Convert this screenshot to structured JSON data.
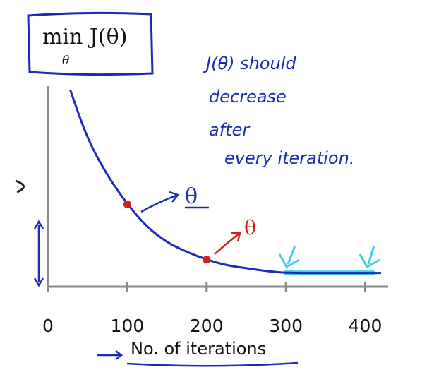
{
  "chart_data": {
    "type": "line",
    "title": "min J(θ)",
    "title_sub": "θ",
    "xlabel": "No. of iterations",
    "xlim": [
      0,
      420
    ],
    "x_ticks": [
      "0",
      "100",
      "200",
      "300",
      "400"
    ],
    "series": [
      {
        "x": [
          28,
          50,
          75,
          100,
          125,
          150,
          175,
          200,
          225,
          250,
          275,
          300,
          350,
          400,
          420
        ],
        "y": [
          0.98,
          0.72,
          0.53,
          0.38,
          0.26,
          0.18,
          0.13,
          0.09,
          0.06,
          0.045,
          0.03,
          0.02,
          0.02,
          0.02,
          0.02
        ]
      }
    ],
    "highlight_points": [
      {
        "x": 100,
        "y": 0.38
      },
      {
        "x": 200,
        "y": 0.09
      }
    ],
    "highlight_segment": {
      "x_start": 300,
      "x_end": 410
    },
    "annotations": {
      "note_lines": [
        "J(θ) should",
        "decrease",
        "after",
        "every iteration."
      ],
      "theta_blue": "θ",
      "theta_red": "θ",
      "y_axis_glyph": "J(θ)"
    },
    "colors": {
      "curve": "#1a2bb8",
      "points": "#d2201a",
      "highlight": "#3fd0e8",
      "axes": "#8a8a8a"
    }
  }
}
